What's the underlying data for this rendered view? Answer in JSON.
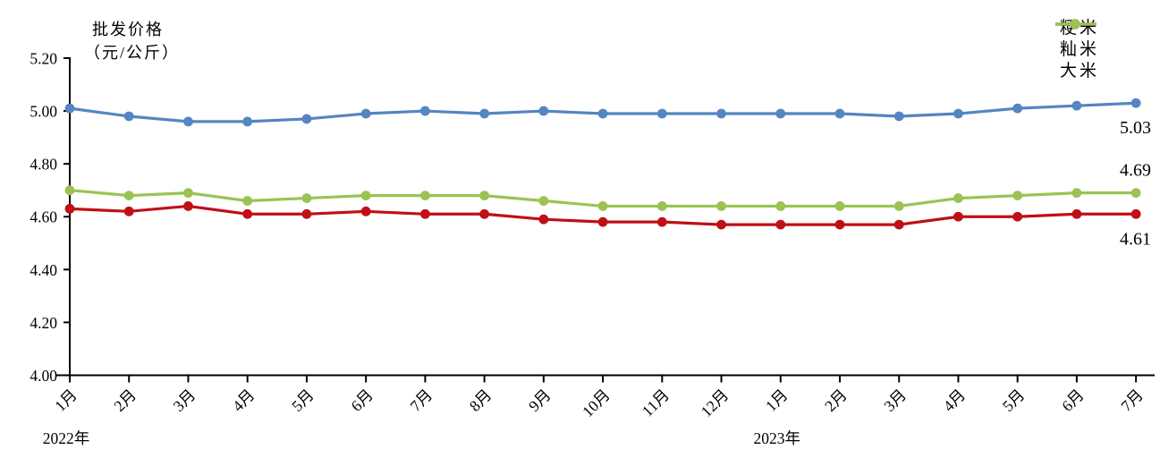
{
  "chart": {
    "title_line1": "批发价格",
    "title_line2": "（元/公斤）"
  },
  "chart_data": {
    "type": "line",
    "title": "批发价格（元/公斤）",
    "xlabel": "",
    "ylabel": "批发价格（元/公斤）",
    "grid": false,
    "legend_position": "top-right",
    "y_axis": {
      "min": 4.0,
      "max": 5.2,
      "step": 0.2,
      "tick_labels": [
        "5.20",
        "5.00",
        "4.80",
        "4.60",
        "4.40",
        "4.20",
        "4.00"
      ]
    },
    "categories": [
      "1月",
      "2月",
      "3月",
      "4月",
      "5月",
      "6月",
      "7月",
      "8月",
      "9月",
      "10月",
      "11月",
      "12月",
      "1月",
      "2月",
      "3月",
      "4月",
      "5月",
      "6月",
      "7月"
    ],
    "year_labels": [
      {
        "text": "2022年",
        "at_index": 0
      },
      {
        "text": "2023年",
        "at_index": 12
      }
    ],
    "series": [
      {
        "name": "粳米",
        "color": "#5585C2",
        "end_label": "5.03",
        "end_label_side": "below",
        "values": [
          5.01,
          4.98,
          4.96,
          4.96,
          4.97,
          4.99,
          5.0,
          4.99,
          5.0,
          4.99,
          4.99,
          4.99,
          4.99,
          4.99,
          4.98,
          4.99,
          5.01,
          5.02,
          5.03
        ]
      },
      {
        "name": "籼米",
        "color": "#C00F16",
        "end_label": "4.61",
        "end_label_side": "below",
        "values": [
          4.63,
          4.62,
          4.64,
          4.61,
          4.61,
          4.62,
          4.61,
          4.61,
          4.59,
          4.58,
          4.58,
          4.57,
          4.57,
          4.57,
          4.57,
          4.6,
          4.6,
          4.61,
          4.61
        ]
      },
      {
        "name": "大米",
        "color": "#9BC353",
        "end_label": "4.69",
        "end_label_side": "above",
        "values": [
          4.7,
          4.68,
          4.69,
          4.66,
          4.67,
          4.68,
          4.68,
          4.68,
          4.66,
          4.64,
          4.64,
          4.64,
          4.64,
          4.64,
          4.64,
          4.67,
          4.68,
          4.69,
          4.69
        ]
      }
    ]
  }
}
